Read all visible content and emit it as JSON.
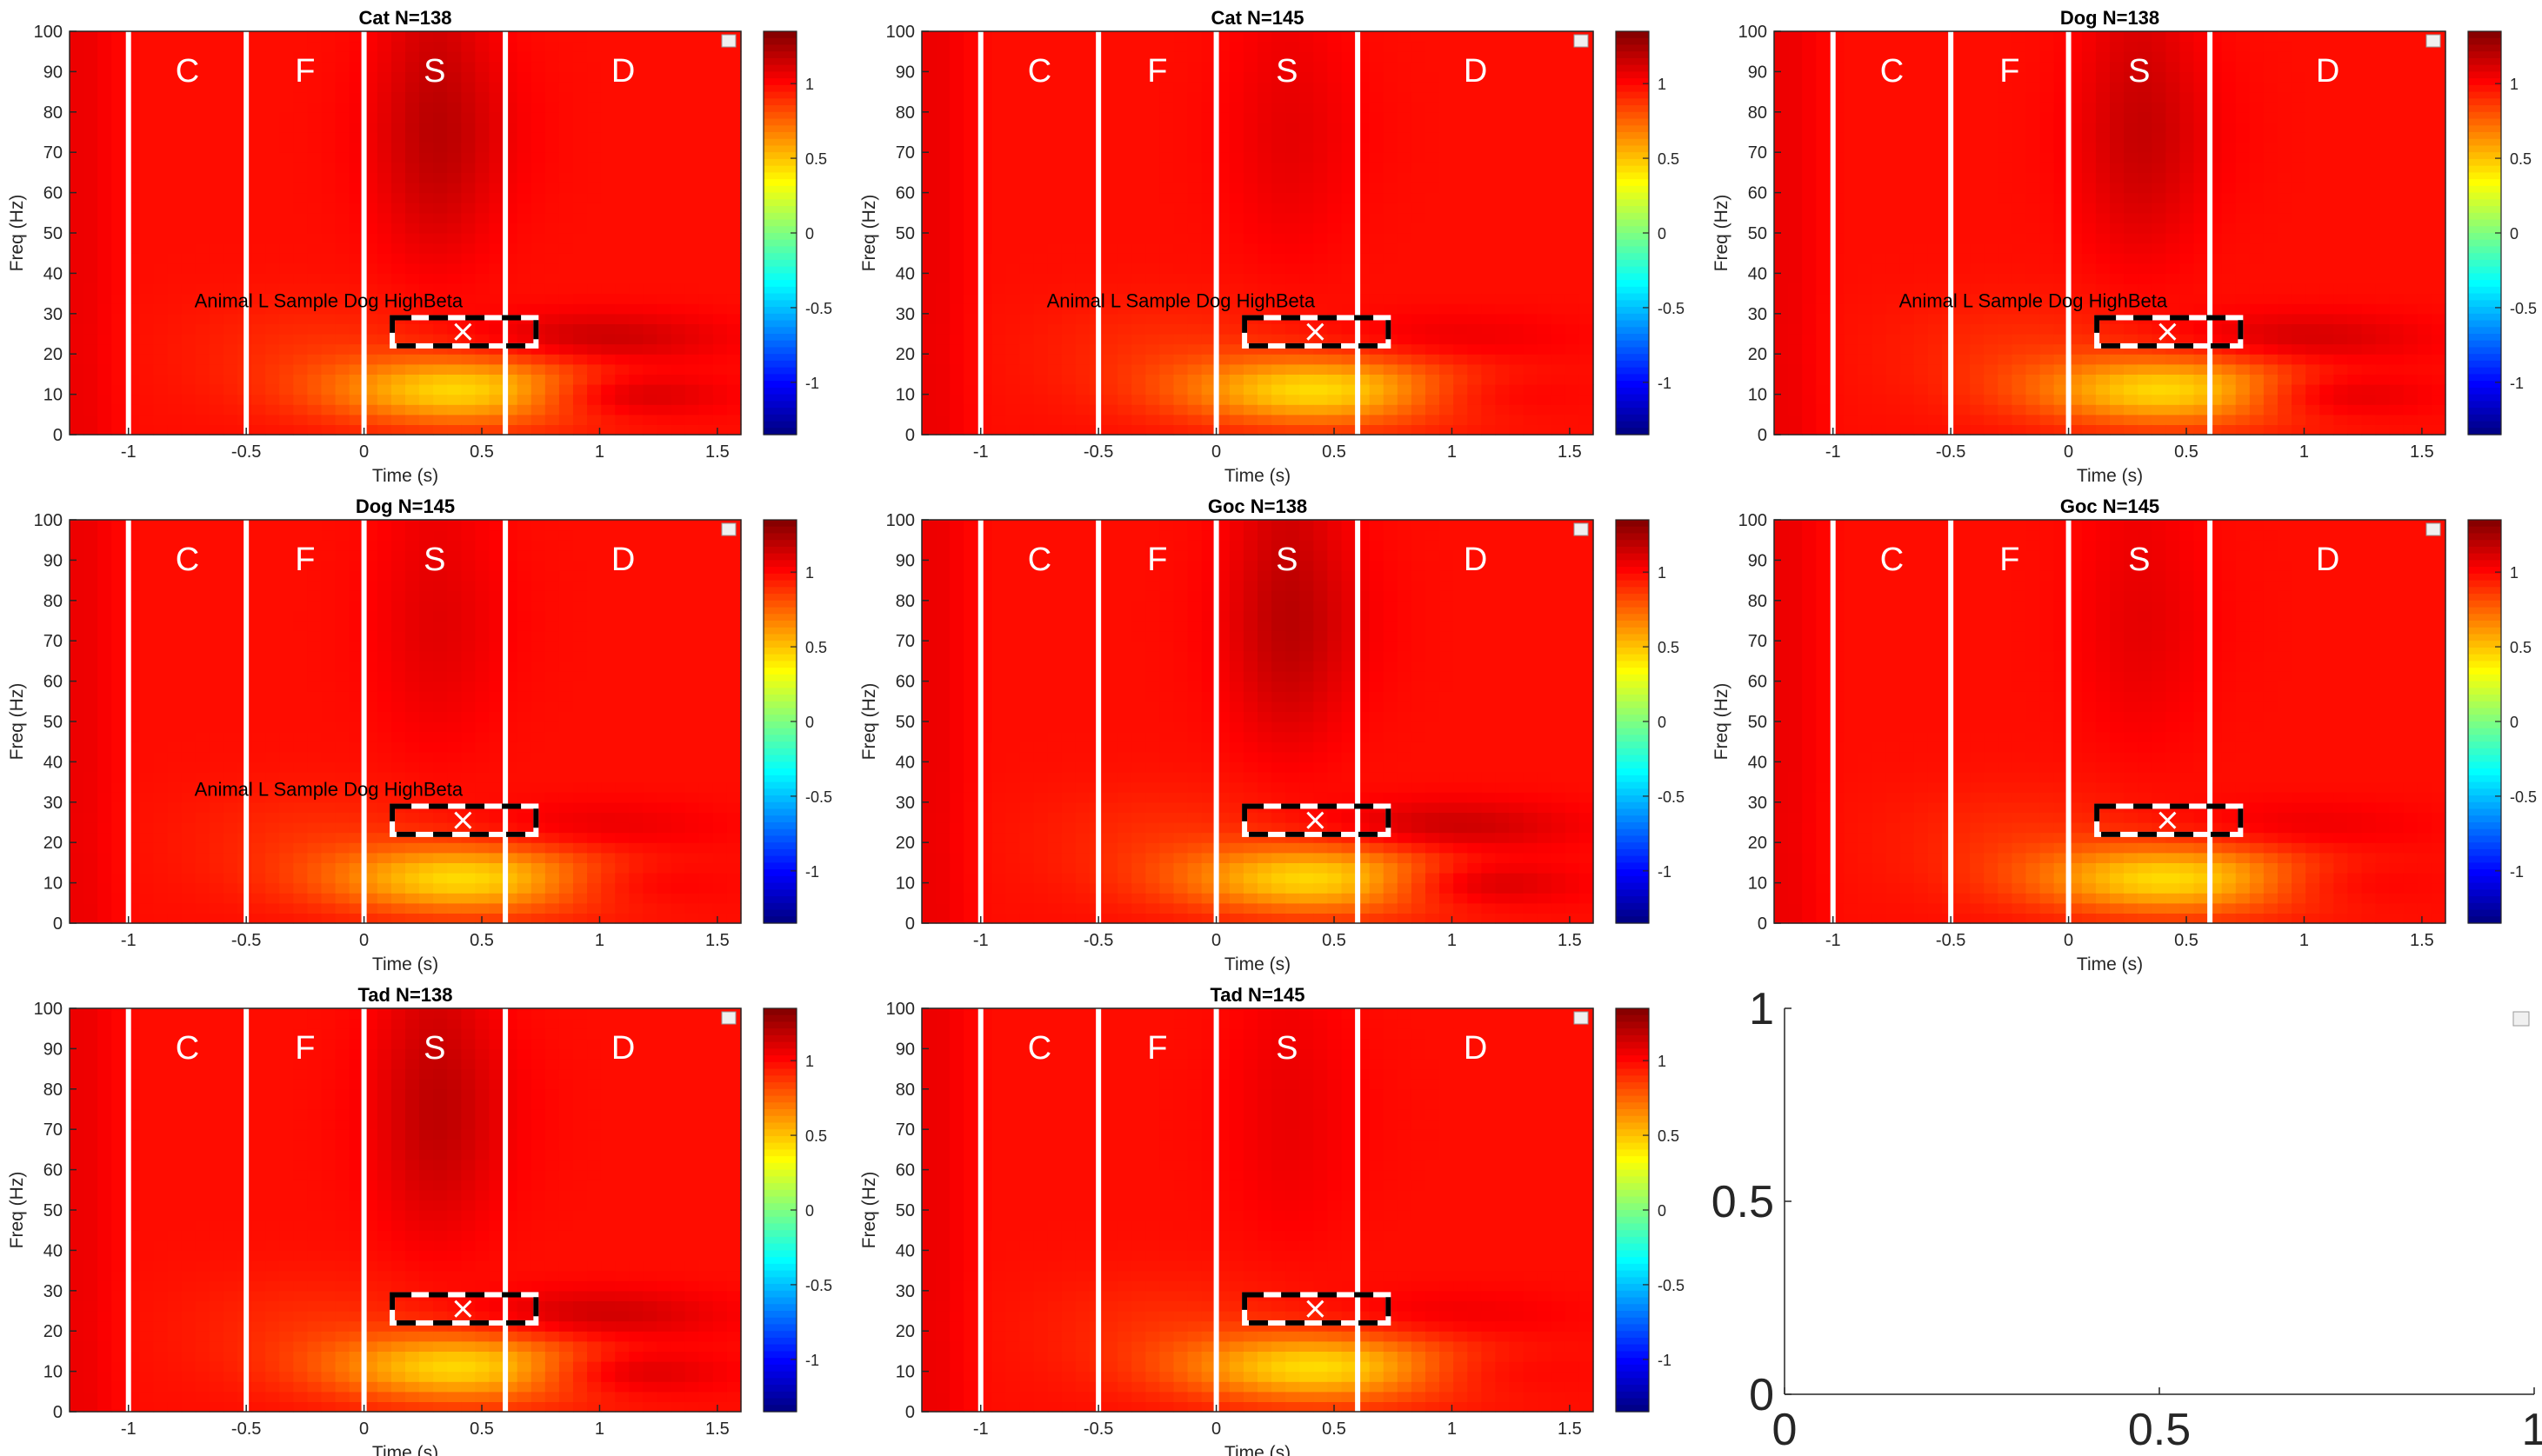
{
  "figure": {
    "colorbar_ticks": [
      "1",
      "0.5",
      "0",
      "-0.5",
      "-1"
    ],
    "phase_labels": [
      "C",
      "F",
      "S",
      "D"
    ],
    "phase_colors": {
      "label": "#ffffff",
      "divider": "#ffffff"
    }
  },
  "chart_data": [
    {
      "type": "heatmap",
      "title": "Cat N=138",
      "xlabel": "Time (s)",
      "ylabel": "Freq (Hz)",
      "xlim": [
        -1.25,
        1.6
      ],
      "ylim": [
        0,
        100
      ],
      "xticks": [
        "-1",
        "-0.5",
        "0",
        "0.5",
        "1",
        "1.5"
      ],
      "yticks": [
        "0",
        "10",
        "20",
        "30",
        "40",
        "50",
        "60",
        "70",
        "80",
        "90",
        "100"
      ],
      "clim": [
        -1.35,
        1.35
      ],
      "phase_boundaries": [
        -1,
        -0.5,
        0,
        0.6
      ],
      "roi": {
        "t0": 0.12,
        "t1": 0.73,
        "f0": 22,
        "f1": 29,
        "marker": [
          0.42,
          25.5
        ]
      },
      "annotation": "Animal L Sample Dog HighBeta",
      "colormap": "jet",
      "intensity": 1.0
    },
    {
      "type": "heatmap",
      "title": "Cat N=145",
      "xlabel": "Time (s)",
      "ylabel": "Freq (Hz)",
      "xlim": [
        -1.25,
        1.6
      ],
      "ylim": [
        0,
        100
      ],
      "xticks": [
        "-1",
        "-0.5",
        "0",
        "0.5",
        "1",
        "1.5"
      ],
      "yticks": [
        "0",
        "10",
        "20",
        "30",
        "40",
        "50",
        "60",
        "70",
        "80",
        "90",
        "100"
      ],
      "clim": [
        -1.35,
        1.35
      ],
      "phase_boundaries": [
        -1,
        -0.5,
        0,
        0.6
      ],
      "roi": {
        "t0": 0.12,
        "t1": 0.73,
        "f0": 22,
        "f1": 29,
        "marker": [
          0.42,
          25.5
        ]
      },
      "annotation": "Animal L Sample Dog HighBeta",
      "colormap": "jet",
      "intensity": 0.45
    },
    {
      "type": "heatmap",
      "title": "Dog N=138",
      "xlabel": "Time (s)",
      "ylabel": "Freq (Hz)",
      "xlim": [
        -1.25,
        1.6
      ],
      "ylim": [
        0,
        100
      ],
      "xticks": [
        "-1",
        "-0.5",
        "0",
        "0.5",
        "1",
        "1.5"
      ],
      "yticks": [
        "0",
        "10",
        "20",
        "30",
        "40",
        "50",
        "60",
        "70",
        "80",
        "90",
        "100"
      ],
      "clim": [
        -1.35,
        1.35
      ],
      "phase_boundaries": [
        -1,
        -0.5,
        0,
        0.6
      ],
      "roi": {
        "t0": 0.12,
        "t1": 0.73,
        "f0": 22,
        "f1": 29,
        "marker": [
          0.42,
          25.5
        ]
      },
      "annotation": "Animal L Sample Dog HighBeta",
      "colormap": "jet",
      "intensity": 0.85
    },
    {
      "type": "heatmap",
      "title": "Dog N=145",
      "xlabel": "Time (s)",
      "ylabel": "Freq (Hz)",
      "xlim": [
        -1.25,
        1.6
      ],
      "ylim": [
        0,
        100
      ],
      "xticks": [
        "-1",
        "-0.5",
        "0",
        "0.5",
        "1",
        "1.5"
      ],
      "yticks": [
        "0",
        "10",
        "20",
        "30",
        "40",
        "50",
        "60",
        "70",
        "80",
        "90",
        "100"
      ],
      "clim": [
        -1.35,
        1.35
      ],
      "phase_boundaries": [
        -1,
        -0.5,
        0,
        0.6
      ],
      "roi": {
        "t0": 0.12,
        "t1": 0.73,
        "f0": 22,
        "f1": 29,
        "marker": [
          0.42,
          25.5
        ]
      },
      "annotation": "Animal L Sample Dog HighBeta",
      "colormap": "jet",
      "intensity": 0.5
    },
    {
      "type": "heatmap",
      "title": "Goc N=138",
      "xlabel": "Time (s)",
      "ylabel": "Freq (Hz)",
      "xlim": [
        -1.25,
        1.6
      ],
      "ylim": [
        0,
        100
      ],
      "xticks": [
        "-1",
        "-0.5",
        "0",
        "0.5",
        "1",
        "1.5"
      ],
      "yticks": [
        "0",
        "10",
        "20",
        "30",
        "40",
        "50",
        "60",
        "70",
        "80",
        "90",
        "100"
      ],
      "clim": [
        -1.35,
        1.35
      ],
      "phase_boundaries": [
        -1,
        -0.5,
        0,
        0.6
      ],
      "roi": {
        "t0": 0.12,
        "t1": 0.73,
        "f0": 22,
        "f1": 29,
        "marker": [
          0.42,
          25.5
        ]
      },
      "annotation": "",
      "colormap": "jet",
      "intensity": 1.0
    },
    {
      "type": "heatmap",
      "title": "Goc N=145",
      "xlabel": "Time (s)",
      "ylabel": "Freq (Hz)",
      "xlim": [
        -1.25,
        1.6
      ],
      "ylim": [
        0,
        100
      ],
      "xticks": [
        "-1",
        "-0.5",
        "0",
        "0.5",
        "1",
        "1.5"
      ],
      "yticks": [
        "0",
        "10",
        "20",
        "30",
        "40",
        "50",
        "60",
        "70",
        "80",
        "90",
        "100"
      ],
      "clim": [
        -1.35,
        1.35
      ],
      "phase_boundaries": [
        -1,
        -0.5,
        0,
        0.6
      ],
      "roi": {
        "t0": 0.12,
        "t1": 0.73,
        "f0": 22,
        "f1": 29,
        "marker": [
          0.42,
          25.5
        ]
      },
      "annotation": "",
      "colormap": "jet",
      "intensity": 0.45
    },
    {
      "type": "heatmap",
      "title": "Tad N=138",
      "xlabel": "Time (s)",
      "ylabel": "Freq (Hz)",
      "xlim": [
        -1.25,
        1.6
      ],
      "ylim": [
        0,
        100
      ],
      "xticks": [
        "-1",
        "-0.5",
        "0",
        "0.5",
        "1",
        "1.5"
      ],
      "yticks": [
        "0",
        "10",
        "20",
        "30",
        "40",
        "50",
        "60",
        "70",
        "80",
        "90",
        "100"
      ],
      "clim": [
        -1.35,
        1.35
      ],
      "phase_boundaries": [
        -1,
        -0.5,
        0,
        0.6
      ],
      "roi": {
        "t0": 0.12,
        "t1": 0.73,
        "f0": 22,
        "f1": 29,
        "marker": [
          0.42,
          25.5
        ]
      },
      "annotation": "",
      "colormap": "jet",
      "intensity": 0.95
    },
    {
      "type": "heatmap",
      "title": "Tad N=145",
      "xlabel": "Time (s)",
      "ylabel": "Freq (Hz)",
      "xlim": [
        -1.25,
        1.6
      ],
      "ylim": [
        0,
        100
      ],
      "xticks": [
        "-1",
        "-0.5",
        "0",
        "0.5",
        "1",
        "1.5"
      ],
      "yticks": [
        "0",
        "10",
        "20",
        "30",
        "40",
        "50",
        "60",
        "70",
        "80",
        "90",
        "100"
      ],
      "clim": [
        -1.35,
        1.35
      ],
      "phase_boundaries": [
        -1,
        -0.5,
        0,
        0.6
      ],
      "roi": {
        "t0": 0.12,
        "t1": 0.73,
        "f0": 22,
        "f1": 29,
        "marker": [
          0.42,
          25.5
        ]
      },
      "annotation": "",
      "colormap": "jet",
      "intensity": 0.4
    },
    {
      "type": "scatter",
      "title": "",
      "xlabel": "",
      "ylabel": "",
      "xlim": [
        0,
        1
      ],
      "ylim": [
        0,
        1
      ],
      "xticks": [
        "0",
        "0.5",
        "1"
      ],
      "yticks": [
        "0",
        "0.5",
        "1"
      ],
      "series": []
    }
  ]
}
